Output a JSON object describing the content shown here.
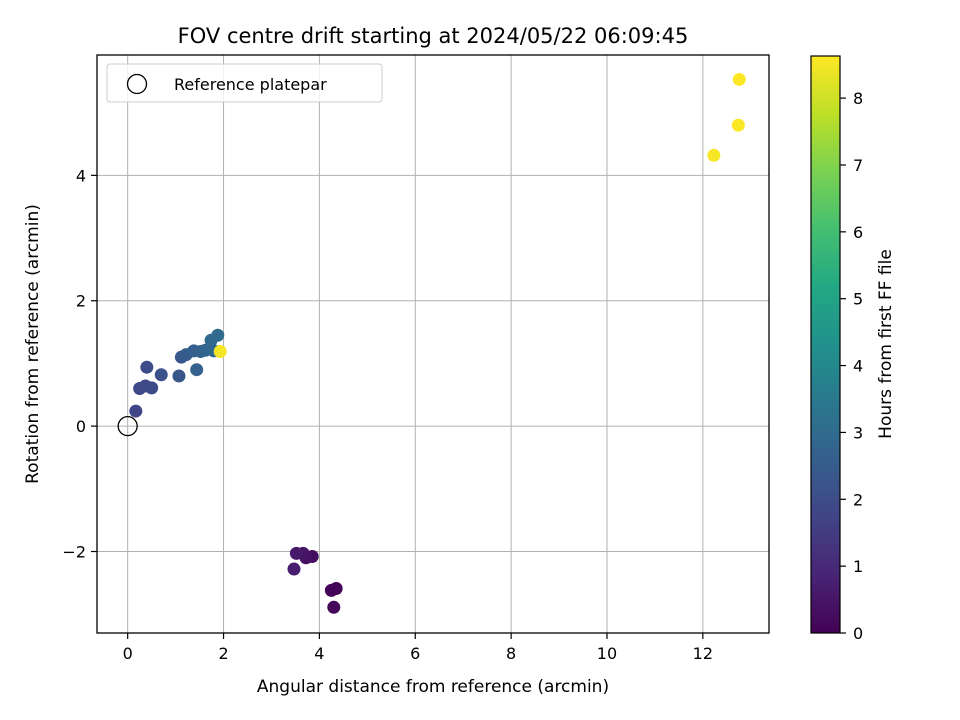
{
  "chart_data": {
    "type": "scatter",
    "title": "FOV centre drift starting at 2024/05/22 06:09:45",
    "xlabel": "Angular distance from reference (arcmin)",
    "ylabel": "Rotation from reference (arcmin)",
    "xlim": [
      -0.64,
      13.38
    ],
    "ylim": [
      -3.3,
      5.92
    ],
    "xticks": [
      0,
      2,
      4,
      6,
      8,
      10,
      12
    ],
    "yticks": [
      -2,
      0,
      2,
      4
    ],
    "ytick_labels": [
      "−2",
      "0",
      "2",
      "4"
    ],
    "grid": true,
    "legend": {
      "position": "top-left",
      "label": "Reference platepar"
    },
    "reference_point": {
      "x": 0,
      "y": 0
    },
    "colorbar": {
      "label": "Hours from first FF file",
      "range": [
        0,
        8.63
      ],
      "ticks": [
        0,
        1,
        2,
        3,
        4,
        5,
        6,
        7,
        8
      ],
      "colormap": "viridis"
    },
    "points": [
      {
        "x": 4.35,
        "y": -2.59,
        "h": 0.05
      },
      {
        "x": 4.25,
        "y": -2.62,
        "h": 0.1
      },
      {
        "x": 4.3,
        "y": -2.89,
        "h": 0.15
      },
      {
        "x": 3.85,
        "y": -2.08,
        "h": 0.3
      },
      {
        "x": 3.72,
        "y": -2.1,
        "h": 0.4
      },
      {
        "x": 3.66,
        "y": -2.03,
        "h": 0.5
      },
      {
        "x": 3.52,
        "y": -2.03,
        "h": 0.6
      },
      {
        "x": 3.47,
        "y": -2.28,
        "h": 0.7
      },
      {
        "x": 0.17,
        "y": 0.24,
        "h": 1.8
      },
      {
        "x": 0.25,
        "y": 0.6,
        "h": 1.85
      },
      {
        "x": 0.37,
        "y": 0.64,
        "h": 1.9
      },
      {
        "x": 0.5,
        "y": 0.61,
        "h": 1.95
      },
      {
        "x": 0.4,
        "y": 0.94,
        "h": 2.0
      },
      {
        "x": 0.7,
        "y": 0.82,
        "h": 2.1
      },
      {
        "x": 1.07,
        "y": 0.8,
        "h": 2.3
      },
      {
        "x": 1.12,
        "y": 1.1,
        "h": 2.4
      },
      {
        "x": 1.22,
        "y": 1.14,
        "h": 2.5
      },
      {
        "x": 1.38,
        "y": 1.2,
        "h": 2.6
      },
      {
        "x": 1.44,
        "y": 0.9,
        "h": 2.65
      },
      {
        "x": 1.52,
        "y": 1.19,
        "h": 2.7
      },
      {
        "x": 1.62,
        "y": 1.21,
        "h": 2.8
      },
      {
        "x": 1.74,
        "y": 1.37,
        "h": 2.9
      },
      {
        "x": 1.8,
        "y": 1.2,
        "h": 2.95
      },
      {
        "x": 1.88,
        "y": 1.45,
        "h": 3.0
      },
      {
        "x": 1.93,
        "y": 1.19,
        "h": 8.5
      },
      {
        "x": 12.23,
        "y": 4.32,
        "h": 8.55
      },
      {
        "x": 12.74,
        "y": 4.8,
        "h": 8.6
      },
      {
        "x": 12.76,
        "y": 5.53,
        "h": 8.63
      }
    ]
  }
}
